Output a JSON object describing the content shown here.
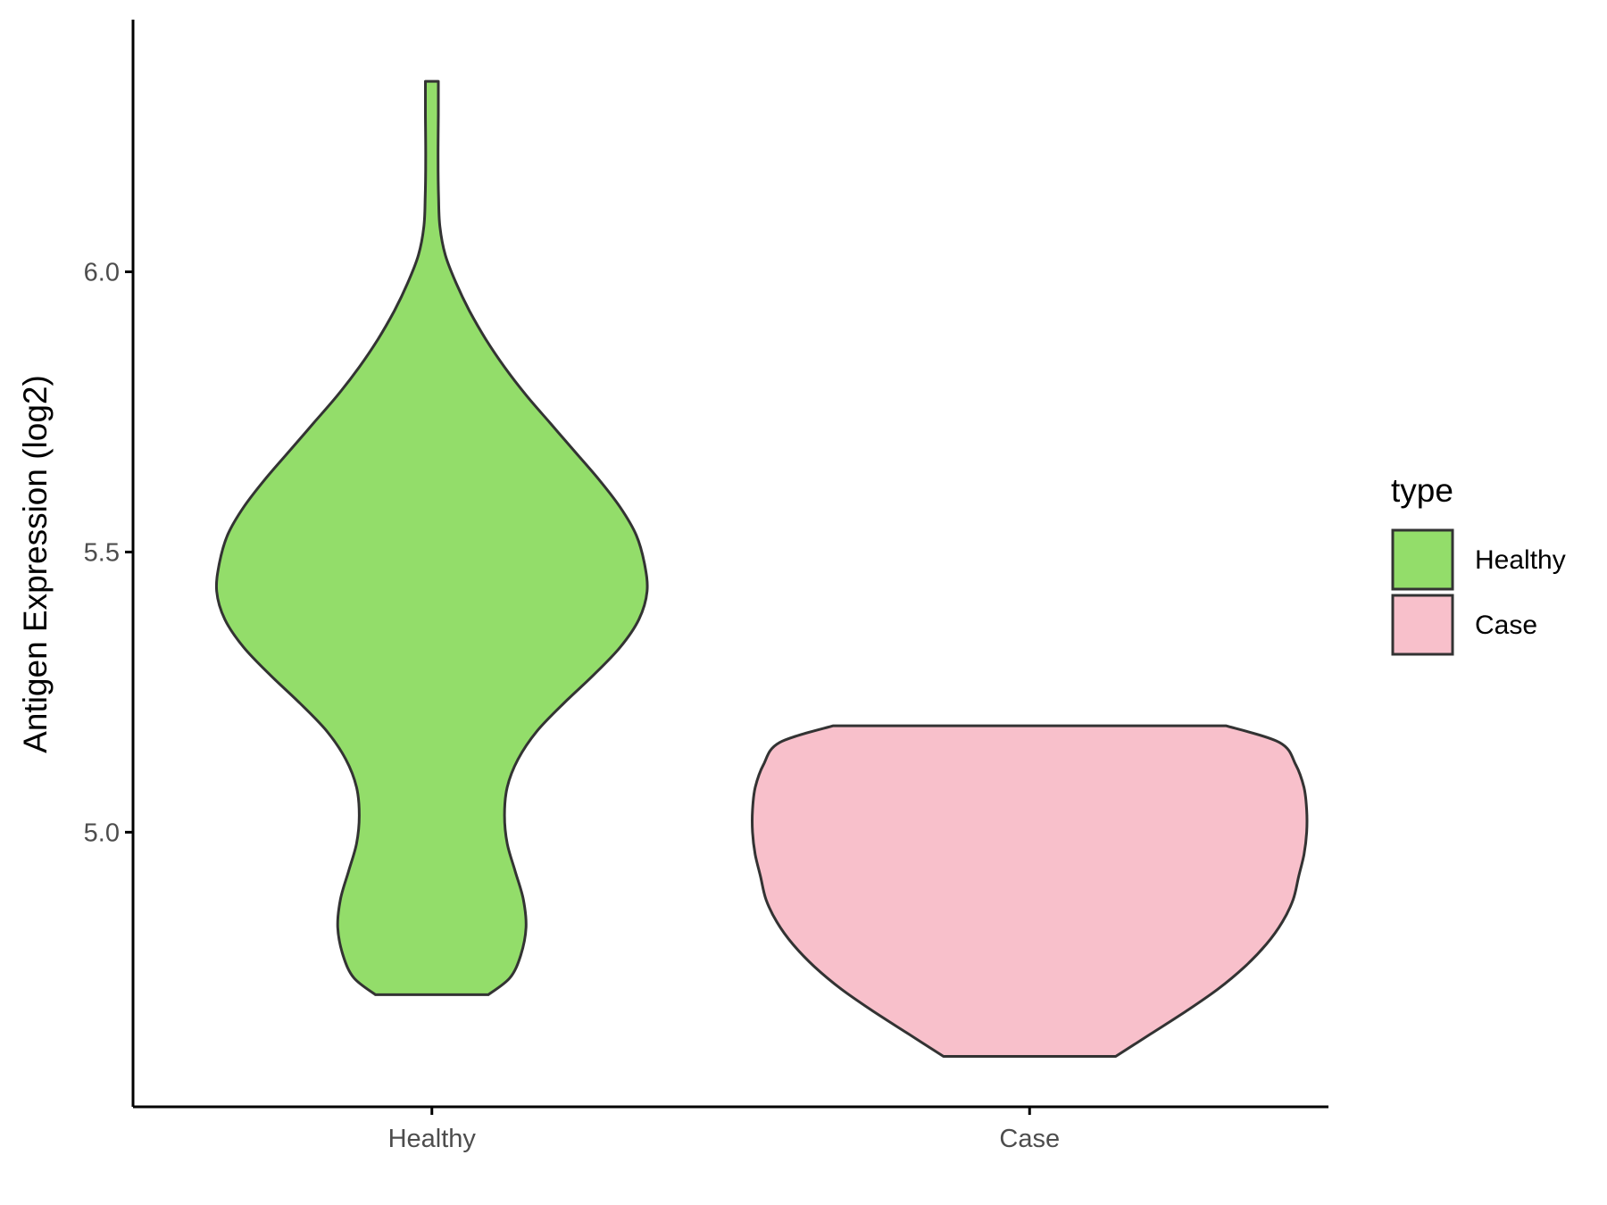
{
  "chart_data": {
    "type": "violin",
    "title": "",
    "xlabel": "",
    "ylabel": "Antigen Expression (log2)",
    "ylim": [
      4.51,
      6.45
    ],
    "yticks": [
      "5.0",
      "5.5",
      "6.0"
    ],
    "categories": [
      "Healthy",
      "Case"
    ],
    "colors": {
      "Healthy": "#93dd6a",
      "Case": "#f8c0cb",
      "outline": "#333333"
    },
    "legend": {
      "title": "type",
      "position": "right",
      "items": [
        {
          "label": "Healthy",
          "color": "#93dd6a"
        },
        {
          "label": "Case",
          "color": "#f8c0cb"
        }
      ]
    },
    "violins": [
      {
        "name": "Healthy",
        "ymin": 4.71,
        "ymax": 6.34,
        "profile": [
          [
            4.71,
            0.21
          ],
          [
            4.74,
            0.29
          ],
          [
            4.78,
            0.33
          ],
          [
            4.83,
            0.35
          ],
          [
            4.88,
            0.34
          ],
          [
            4.93,
            0.31
          ],
          [
            4.98,
            0.28
          ],
          [
            5.03,
            0.27
          ],
          [
            5.08,
            0.28
          ],
          [
            5.13,
            0.32
          ],
          [
            5.18,
            0.39
          ],
          [
            5.23,
            0.49
          ],
          [
            5.28,
            0.6
          ],
          [
            5.33,
            0.7
          ],
          [
            5.38,
            0.77
          ],
          [
            5.43,
            0.8
          ],
          [
            5.48,
            0.79
          ],
          [
            5.53,
            0.76
          ],
          [
            5.58,
            0.7
          ],
          [
            5.63,
            0.62
          ],
          [
            5.68,
            0.53
          ],
          [
            5.73,
            0.44
          ],
          [
            5.78,
            0.35
          ],
          [
            5.83,
            0.27
          ],
          [
            5.88,
            0.2
          ],
          [
            5.93,
            0.14
          ],
          [
            5.98,
            0.09
          ],
          [
            6.03,
            0.05
          ],
          [
            6.08,
            0.03
          ],
          [
            6.13,
            0.025
          ],
          [
            6.2,
            0.023
          ],
          [
            6.28,
            0.024
          ],
          [
            6.34,
            0.024
          ]
        ]
      },
      {
        "name": "Case",
        "ymin": 4.6,
        "ymax": 5.19,
        "profile": [
          [
            4.6,
            0.32
          ],
          [
            4.64,
            0.45
          ],
          [
            4.68,
            0.58
          ],
          [
            4.72,
            0.7
          ],
          [
            4.76,
            0.8
          ],
          [
            4.8,
            0.88
          ],
          [
            4.84,
            0.94
          ],
          [
            4.88,
            0.98
          ],
          [
            4.92,
            1.0
          ],
          [
            4.96,
            1.02
          ],
          [
            5.0,
            1.03
          ],
          [
            5.04,
            1.03
          ],
          [
            5.08,
            1.02
          ],
          [
            5.12,
            0.99
          ],
          [
            5.16,
            0.93
          ],
          [
            5.19,
            0.73
          ]
        ]
      }
    ]
  }
}
